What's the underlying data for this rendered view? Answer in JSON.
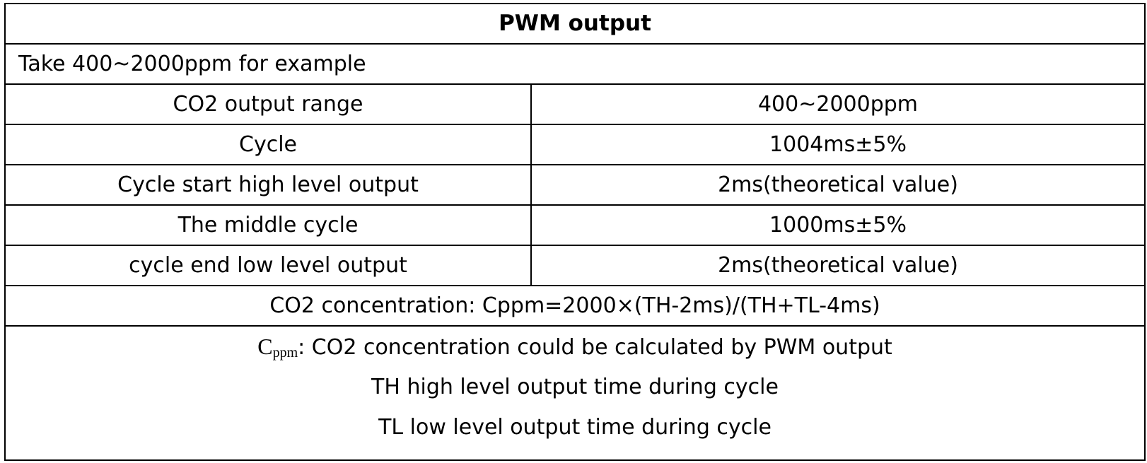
{
  "table": {
    "title": "PWM output",
    "subtitle": "Take 400~2000ppm for example",
    "rows": [
      {
        "label": "CO2 output range",
        "value": "400~2000ppm"
      },
      {
        "label": "Cycle",
        "value": "1004ms±5%"
      },
      {
        "label": "Cycle start high level output",
        "value": "2ms(theoretical value)"
      },
      {
        "label": "The middle cycle",
        "value": "1000ms±5%"
      },
      {
        "label": "cycle end low level output",
        "value": "2ms(theoretical value)"
      }
    ],
    "formula": "CO2 concentration: Cppm=2000×(TH-2ms)/(TH+TL-4ms)",
    "notes": {
      "symbol_main": "C",
      "symbol_sub": "ppm",
      "cppm_desc": ": CO2 concentration could be calculated by PWM output",
      "th_desc": "TH high level output time during cycle",
      "tl_desc": "TL low level output time during cycle"
    }
  }
}
